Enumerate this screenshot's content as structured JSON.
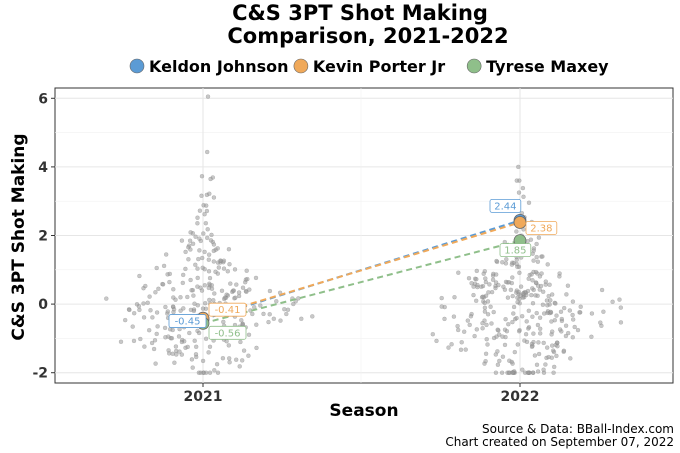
{
  "chart_data": {
    "type": "scatter",
    "title_lines": [
      "C&S 3PT Shot Making",
      "Comparison, 2021-2022"
    ],
    "xlabel": "Season",
    "ylabel": "C&S 3PT Shot Making",
    "categories": [
      "2021",
      "2022"
    ],
    "ylim": [
      -2.3,
      6.3
    ],
    "yticks": [
      -2,
      0,
      2,
      4,
      6
    ],
    "grid": true,
    "legend_position": "top",
    "series": [
      {
        "name": "Keldon Johnson",
        "color": "#5b9bd5",
        "values": [
          -0.45,
          2.44
        ],
        "labels": [
          "-0.45",
          "2.44"
        ]
      },
      {
        "name": "Kevin Porter Jr",
        "color": "#f0a95a",
        "values": [
          -0.41,
          2.38
        ],
        "labels": [
          "-0.41",
          "2.38"
        ]
      },
      {
        "name": "Tyrese Maxey",
        "color": "#8fbf8a",
        "values": [
          -0.56,
          1.85
        ],
        "labels": [
          "-0.56",
          "1.85"
        ]
      }
    ],
    "background_points": {
      "description_only": false,
      "2021": {
        "count": 300,
        "mean": -0.2,
        "min": -2.0,
        "max": 6.05
      },
      "2022": {
        "count": 320,
        "mean": -0.3,
        "min": -2.0,
        "max": 4.0
      }
    },
    "caption_lines": [
      "Source & Data: BBall-Index.com",
      "Chart created on September 07, 2022"
    ]
  }
}
